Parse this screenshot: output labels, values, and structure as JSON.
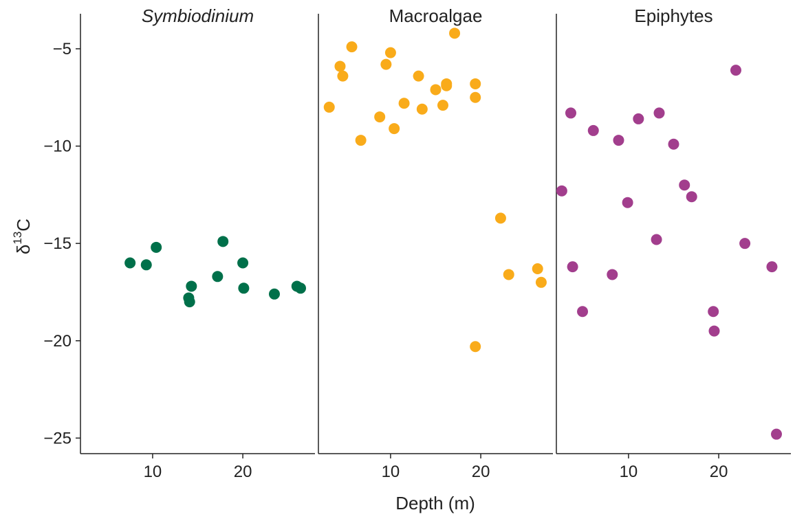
{
  "chart_data": {
    "type": "scatter",
    "xlabel": "Depth (m)",
    "ylabel_main": "δ",
    "ylabel_sup": "13",
    "ylabel_tail": "C",
    "ylim": [
      -25.8,
      -3.2
    ],
    "xlim": [
      2,
      28
    ],
    "y_ticks": [
      -5,
      -10,
      -15,
      -20,
      -25
    ],
    "y_tick_labels": [
      "−5",
      "−10",
      "−15",
      "−20",
      "−25"
    ],
    "x_ticks": [
      10,
      20
    ],
    "x_tick_labels": [
      "10",
      "20"
    ],
    "panels": [
      {
        "title": "Symbiodinium",
        "italic": true,
        "color": "#00704a",
        "points": [
          {
            "x": 7.5,
            "y": -16.0
          },
          {
            "x": 9.3,
            "y": -16.1
          },
          {
            "x": 10.4,
            "y": -15.2
          },
          {
            "x": 14.0,
            "y": -17.8
          },
          {
            "x": 14.1,
            "y": -18.0
          },
          {
            "x": 14.3,
            "y": -17.2
          },
          {
            "x": 17.2,
            "y": -16.7
          },
          {
            "x": 17.8,
            "y": -14.9
          },
          {
            "x": 20.0,
            "y": -16.0
          },
          {
            "x": 20.1,
            "y": -17.3
          },
          {
            "x": 23.5,
            "y": -17.6
          },
          {
            "x": 26.0,
            "y": -17.2
          },
          {
            "x": 26.4,
            "y": -17.3
          }
        ]
      },
      {
        "title": "Macroalgae",
        "italic": false,
        "color": "#f9ab1a",
        "points": [
          {
            "x": 3.2,
            "y": -8.0
          },
          {
            "x": 4.4,
            "y": -5.9
          },
          {
            "x": 4.7,
            "y": -6.4
          },
          {
            "x": 5.7,
            "y": -4.9
          },
          {
            "x": 6.7,
            "y": -9.7
          },
          {
            "x": 8.8,
            "y": -8.5
          },
          {
            "x": 9.5,
            "y": -5.8
          },
          {
            "x": 10.0,
            "y": -5.2
          },
          {
            "x": 10.4,
            "y": -9.1
          },
          {
            "x": 11.5,
            "y": -7.8
          },
          {
            "x": 13.1,
            "y": -6.4
          },
          {
            "x": 13.5,
            "y": -8.1
          },
          {
            "x": 15.0,
            "y": -7.1
          },
          {
            "x": 15.8,
            "y": -7.9
          },
          {
            "x": 16.2,
            "y": -6.8
          },
          {
            "x": 16.2,
            "y": -6.9
          },
          {
            "x": 17.1,
            "y": -4.2
          },
          {
            "x": 19.4,
            "y": -6.8
          },
          {
            "x": 19.4,
            "y": -7.5
          },
          {
            "x": 19.4,
            "y": -20.3
          },
          {
            "x": 22.2,
            "y": -13.7
          },
          {
            "x": 23.1,
            "y": -16.6
          },
          {
            "x": 26.3,
            "y": -16.3
          },
          {
            "x": 26.7,
            "y": -17.0
          }
        ]
      },
      {
        "title": "Epiphytes",
        "italic": false,
        "color": "#a23e8d",
        "points": [
          {
            "x": 2.6,
            "y": -12.3
          },
          {
            "x": 3.6,
            "y": -8.3
          },
          {
            "x": 3.8,
            "y": -16.2
          },
          {
            "x": 4.9,
            "y": -18.5
          },
          {
            "x": 6.1,
            "y": -9.2
          },
          {
            "x": 8.2,
            "y": -16.6
          },
          {
            "x": 8.9,
            "y": -9.7
          },
          {
            "x": 9.9,
            "y": -12.9
          },
          {
            "x": 11.1,
            "y": -8.6
          },
          {
            "x": 13.1,
            "y": -14.8
          },
          {
            "x": 13.4,
            "y": -8.3
          },
          {
            "x": 15.0,
            "y": -9.9
          },
          {
            "x": 16.2,
            "y": -12.0
          },
          {
            "x": 17.0,
            "y": -12.6
          },
          {
            "x": 19.4,
            "y": -18.5
          },
          {
            "x": 19.5,
            "y": -19.5
          },
          {
            "x": 21.9,
            "y": -6.1
          },
          {
            "x": 22.9,
            "y": -15.0
          },
          {
            "x": 25.9,
            "y": -16.2
          },
          {
            "x": 26.4,
            "y": -24.8
          }
        ]
      }
    ]
  }
}
